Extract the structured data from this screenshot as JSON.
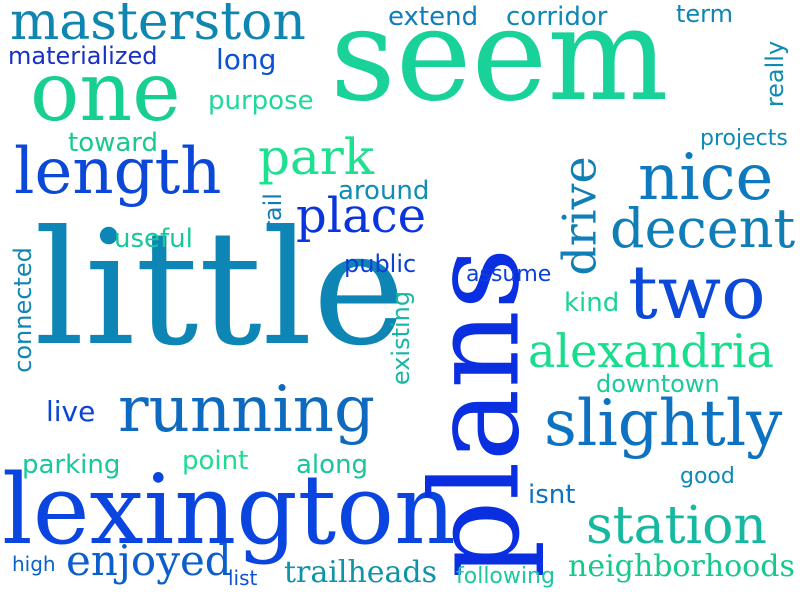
{
  "words": {
    "seem": "seem",
    "plans": "plans",
    "little": "little",
    "lexington": "lexington",
    "running": "running",
    "one": "one",
    "masterston": "masterston",
    "length": "length",
    "nice": "nice",
    "decent": "decent",
    "two": "two",
    "slightly": "slightly",
    "alexandria": "alexandria",
    "station": "station",
    "place": "place",
    "park": "park",
    "drive": "drive",
    "enjoyed": "enjoyed",
    "neighborhoods": "neighborhoods",
    "trailheads": "trailheads",
    "materialized": "materialized",
    "extend": "extend",
    "corridor": "corridor",
    "term": "term",
    "long": "long",
    "purpose": "purpose",
    "toward": "toward",
    "really": "really",
    "projects": "projects",
    "around": "around",
    "useful": "useful",
    "rail": "rail",
    "public": "public",
    "assume": "assume",
    "connected": "connected",
    "kind": "kind",
    "existing": "existing",
    "downtown": "downtown",
    "live": "live",
    "parking": "parking",
    "point": "point",
    "along": "along",
    "good": "good",
    "isnt": "isnt",
    "high": "high",
    "list": "list",
    "following": "following"
  },
  "colors": {
    "teal": "#15c48f",
    "mint": "#1fe091",
    "cyan": "#0f8fb5",
    "ocean": "#137ab8",
    "blue": "#0d55d0",
    "royal": "#0a2fe0",
    "navy": "#123fcc"
  }
}
